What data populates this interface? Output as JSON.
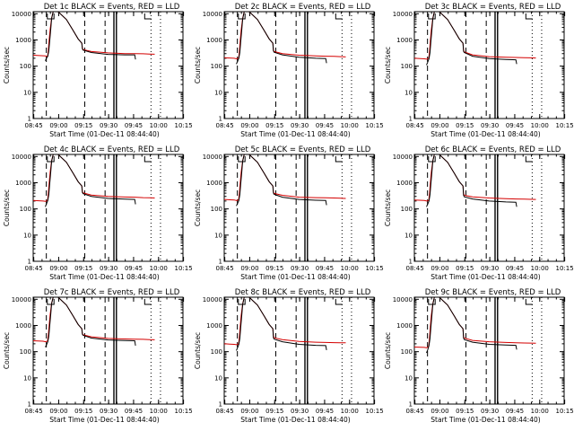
{
  "figure": {
    "xlabel": "Start Time (01-Dec-11 08:44:40)",
    "ylabel": "Counts/sec"
  },
  "chart_data": [
    {
      "type": "line",
      "title": "Det 1c BLACK = Events, RED = LLD",
      "x_ticks": [
        "08:45",
        "09:00",
        "09:15",
        "09:30",
        "09:45",
        "10:00",
        "10:15"
      ],
      "y_ticks": [
        "1",
        "10",
        "100",
        "1000",
        "10000"
      ],
      "yscale": "log",
      "xlim_min": [
        0,
        90
      ],
      "ylim": [
        1,
        12000
      ],
      "series": [
        {
          "color": "#d40000",
          "x": [
            0,
            7.4,
            8.6,
            9.1,
            9.6,
            10.2,
            11.1,
            12,
            15,
            20,
            24,
            27,
            29.2,
            29.6,
            30,
            35,
            45,
            55,
            61,
            66,
            70,
            73
          ],
          "y": [
            260,
            245,
            230,
            400,
            1000,
            2500,
            7000,
            12000,
            12000,
            6000,
            2300,
            1100,
            750,
            480,
            430,
            360,
            320,
            300,
            300,
            295,
            290,
            285
          ]
        },
        {
          "color": "#000000",
          "x": [
            7.3,
            8,
            8.8,
            9.4,
            9.9,
            10.5,
            11.1,
            12,
            15,
            20,
            24,
            27,
            29.2,
            29.6,
            30,
            35,
            45,
            55,
            61,
            61.5
          ],
          "y": [
            160,
            200,
            240,
            380,
            900,
            2400,
            6800,
            12000,
            12000,
            6000,
            2300,
            1100,
            750,
            450,
            410,
            330,
            280,
            270,
            270,
            180
          ]
        }
      ]
    },
    {
      "type": "line",
      "title": "Det 2c BLACK = Events, RED = LLD",
      "x_ticks": [
        "08:45",
        "09:00",
        "09:15",
        "09:30",
        "09:45",
        "10:00",
        "10:15"
      ],
      "y_ticks": [
        "1",
        "10",
        "100",
        "1000",
        "10000"
      ],
      "yscale": "log",
      "xlim_min": [
        0,
        90
      ],
      "ylim": [
        1,
        12000
      ],
      "series": [
        {
          "color": "#d40000",
          "x": [
            0,
            6,
            7.4,
            8.6,
            9.1,
            9.6,
            10.2,
            11.1,
            12,
            15,
            20,
            24,
            27,
            29.2,
            29.6,
            30,
            35,
            45,
            55,
            61,
            66,
            70,
            73
          ],
          "y": [
            210,
            200,
            190,
            200,
            350,
            900,
            2400,
            6800,
            12000,
            12000,
            6000,
            2300,
            1100,
            750,
            400,
            360,
            300,
            260,
            245,
            240,
            235,
            230,
            225
          ]
        },
        {
          "color": "#000000",
          "x": [
            7.3,
            8,
            8.8,
            9.4,
            9.9,
            10.5,
            11.1,
            12,
            15,
            20,
            24,
            27,
            29.2,
            29.6,
            30,
            35,
            45,
            55,
            61,
            61.5
          ],
          "y": [
            120,
            150,
            200,
            330,
            850,
            2300,
            6500,
            12000,
            12000,
            6000,
            2300,
            1100,
            750,
            380,
            340,
            270,
            220,
            200,
            195,
            130
          ]
        }
      ]
    },
    {
      "type": "line",
      "title": "Det 3c BLACK = Events, RED = LLD",
      "x_ticks": [
        "08:45",
        "09:00",
        "09:15",
        "09:30",
        "09:45",
        "10:00",
        "10:15"
      ],
      "y_ticks": [
        "1",
        "10",
        "100",
        "1000",
        "10000"
      ],
      "yscale": "log",
      "xlim_min": [
        0,
        90
      ],
      "ylim": [
        1,
        12000
      ],
      "series": [
        {
          "color": "#d40000",
          "x": [
            0,
            6,
            7.4,
            8.6,
            9.1,
            9.6,
            10.2,
            11.1,
            12,
            15,
            20,
            24,
            27,
            29.2,
            29.6,
            30,
            35,
            45,
            55,
            61,
            66,
            70,
            73
          ],
          "y": [
            200,
            190,
            185,
            200,
            350,
            900,
            2400,
            6800,
            12000,
            12000,
            6000,
            2300,
            1100,
            750,
            400,
            350,
            270,
            230,
            220,
            215,
            210,
            208,
            205
          ]
        },
        {
          "color": "#000000",
          "x": [
            7.3,
            8,
            8.8,
            9.4,
            9.9,
            10.5,
            11.1,
            12,
            15,
            20,
            24,
            27,
            29.2,
            29.6,
            30,
            35,
            45,
            55,
            61,
            61.5
          ],
          "y": [
            110,
            140,
            190,
            320,
            850,
            2300,
            6500,
            12000,
            12000,
            6000,
            2300,
            1100,
            750,
            370,
            330,
            240,
            195,
            180,
            175,
            120
          ]
        }
      ]
    },
    {
      "type": "line",
      "title": "Det 4c BLACK = Events, RED = LLD",
      "x_ticks": [
        "08:45",
        "09:00",
        "09:15",
        "09:30",
        "09:45",
        "10:00",
        "10:15"
      ],
      "y_ticks": [
        "1",
        "10",
        "100",
        "1000",
        "10000"
      ],
      "yscale": "log",
      "xlim_min": [
        0,
        90
      ],
      "ylim": [
        1,
        12000
      ],
      "series": [
        {
          "color": "#d40000",
          "x": [
            0,
            6,
            7.4,
            8.6,
            9.1,
            9.6,
            10.2,
            11.1,
            12,
            15,
            20,
            24,
            27,
            29.2,
            29.6,
            30,
            35,
            45,
            55,
            61,
            66,
            70,
            73
          ],
          "y": [
            210,
            200,
            195,
            210,
            380,
            950,
            2500,
            7000,
            12000,
            12000,
            6000,
            2300,
            1100,
            750,
            450,
            410,
            340,
            300,
            285,
            280,
            270,
            265,
            260
          ]
        },
        {
          "color": "#000000",
          "x": [
            7.3,
            8,
            8.8,
            9.4,
            9.9,
            10.5,
            11.1,
            12,
            15,
            20,
            24,
            27,
            29.2,
            29.6,
            30,
            35,
            45,
            55,
            61,
            61.5
          ],
          "y": [
            120,
            155,
            210,
            350,
            900,
            2400,
            6800,
            12000,
            12000,
            6000,
            2300,
            1100,
            750,
            420,
            380,
            300,
            250,
            235,
            230,
            150
          ]
        }
      ]
    },
    {
      "type": "line",
      "title": "Det 5c BLACK = Events, RED = LLD",
      "x_ticks": [
        "08:45",
        "09:00",
        "09:15",
        "09:30",
        "09:45",
        "10:00",
        "10:15"
      ],
      "y_ticks": [
        "1",
        "10",
        "100",
        "1000",
        "10000"
      ],
      "yscale": "log",
      "xlim_min": [
        0,
        90
      ],
      "ylim": [
        1,
        12000
      ],
      "series": [
        {
          "color": "#d40000",
          "x": [
            0,
            6,
            7.4,
            8.6,
            9.1,
            9.6,
            10.2,
            11.1,
            12,
            15,
            20,
            24,
            27,
            29.2,
            29.6,
            30,
            35,
            45,
            55,
            61,
            66,
            70,
            73
          ],
          "y": [
            230,
            220,
            210,
            220,
            380,
            950,
            2500,
            7000,
            12000,
            12000,
            6000,
            2300,
            1100,
            750,
            430,
            390,
            330,
            280,
            270,
            265,
            260,
            255,
            250
          ]
        },
        {
          "color": "#000000",
          "x": [
            7.3,
            8,
            8.8,
            9.4,
            9.9,
            10.5,
            11.1,
            12,
            15,
            20,
            24,
            27,
            29.2,
            29.6,
            30,
            35,
            45,
            55,
            61,
            61.5
          ],
          "y": [
            130,
            160,
            210,
            350,
            900,
            2400,
            6800,
            12000,
            12000,
            6000,
            2300,
            1100,
            750,
            400,
            360,
            280,
            230,
            215,
            210,
            140
          ]
        }
      ]
    },
    {
      "type": "line",
      "title": "Det 6c BLACK = Events, RED = LLD",
      "x_ticks": [
        "08:45",
        "09:00",
        "09:15",
        "09:30",
        "09:45",
        "10:00",
        "10:15"
      ],
      "y_ticks": [
        "1",
        "10",
        "100",
        "1000",
        "10000"
      ],
      "yscale": "log",
      "xlim_min": [
        0,
        90
      ],
      "ylim": [
        1,
        12000
      ],
      "series": [
        {
          "color": "#d40000",
          "x": [
            0,
            6,
            7.4,
            8.6,
            9.1,
            9.6,
            10.2,
            11.1,
            12,
            15,
            20,
            24,
            27,
            29.2,
            29.6,
            30,
            35,
            45,
            55,
            61,
            66,
            70,
            73
          ],
          "y": [
            220,
            210,
            200,
            210,
            370,
            950,
            2500,
            7000,
            12000,
            12000,
            6000,
            2300,
            1100,
            750,
            380,
            330,
            290,
            260,
            245,
            240,
            235,
            232,
            230
          ]
        },
        {
          "color": "#000000",
          "x": [
            7.3,
            8,
            8.8,
            9.4,
            9.9,
            10.5,
            11.1,
            12,
            15,
            20,
            24,
            27,
            29.2,
            29.6,
            30,
            35,
            45,
            55,
            61,
            61.5
          ],
          "y": [
            120,
            150,
            200,
            340,
            880,
            2400,
            6800,
            12000,
            12000,
            6000,
            2300,
            1100,
            750,
            330,
            290,
            240,
            200,
            185,
            180,
            120
          ]
        }
      ]
    },
    {
      "type": "line",
      "title": "Det 7c BLACK = Events, RED = LLD",
      "x_ticks": [
        "08:45",
        "09:00",
        "09:15",
        "09:30",
        "09:45",
        "10:00",
        "10:15"
      ],
      "y_ticks": [
        "1",
        "10",
        "100",
        "1000",
        "10000"
      ],
      "yscale": "log",
      "xlim_min": [
        0,
        90
      ],
      "ylim": [
        1,
        12000
      ],
      "series": [
        {
          "color": "#d40000",
          "x": [
            0,
            6,
            7.4,
            8.6,
            9.1,
            9.6,
            10.2,
            11.1,
            12,
            15,
            20,
            24,
            27,
            29.2,
            29.6,
            30,
            35,
            45,
            55,
            61,
            66,
            70,
            73
          ],
          "y": [
            260,
            250,
            240,
            250,
            420,
            1000,
            2600,
            7200,
            12000,
            12000,
            6000,
            2300,
            1100,
            750,
            480,
            440,
            370,
            320,
            305,
            300,
            295,
            290,
            285
          ]
        },
        {
          "color": "#000000",
          "x": [
            7.3,
            8,
            8.8,
            9.4,
            9.9,
            10.5,
            11.1,
            12,
            15,
            20,
            24,
            27,
            29.2,
            29.6,
            30,
            35,
            45,
            55,
            61,
            61.5
          ],
          "y": [
            150,
            180,
            240,
            380,
            950,
            2500,
            7000,
            12000,
            12000,
            6000,
            2300,
            1100,
            750,
            460,
            420,
            330,
            280,
            265,
            260,
            170
          ]
        }
      ]
    },
    {
      "type": "line",
      "title": "Det 8c BLACK = Events, RED = LLD",
      "x_ticks": [
        "08:45",
        "09:00",
        "09:15",
        "09:30",
        "09:45",
        "10:00",
        "10:15"
      ],
      "y_ticks": [
        "1",
        "10",
        "100",
        "1000",
        "10000"
      ],
      "yscale": "log",
      "xlim_min": [
        0,
        90
      ],
      "ylim": [
        1,
        12000
      ],
      "series": [
        {
          "color": "#d40000",
          "x": [
            0,
            6,
            7.4,
            8.6,
            9.1,
            9.6,
            10.2,
            11.1,
            12,
            15,
            20,
            24,
            27,
            29.2,
            29.6,
            30,
            35,
            45,
            55,
            61,
            66,
            70,
            73
          ],
          "y": [
            200,
            190,
            185,
            195,
            350,
            900,
            2400,
            6800,
            12000,
            12000,
            6000,
            2300,
            1100,
            750,
            400,
            340,
            290,
            245,
            230,
            225,
            222,
            220,
            218
          ]
        },
        {
          "color": "#000000",
          "x": [
            7.3,
            8,
            8.8,
            9.4,
            9.9,
            10.5,
            11.1,
            12,
            15,
            20,
            24,
            27,
            29.2,
            29.6,
            30,
            35,
            45,
            55,
            61,
            61.5
          ],
          "y": [
            110,
            140,
            190,
            320,
            850,
            2300,
            6500,
            12000,
            12000,
            6000,
            2300,
            1100,
            750,
            340,
            300,
            240,
            190,
            175,
            170,
            115
          ]
        }
      ]
    },
    {
      "type": "line",
      "title": "Det 9c BLACK = Events, RED = LLD",
      "x_ticks": [
        "08:45",
        "09:00",
        "09:15",
        "09:30",
        "09:45",
        "10:00",
        "10:15"
      ],
      "y_ticks": [
        "1",
        "10",
        "100",
        "1000",
        "10000"
      ],
      "yscale": "log",
      "xlim_min": [
        0,
        90
      ],
      "ylim": [
        1,
        12000
      ],
      "series": [
        {
          "color": "#d40000",
          "x": [
            0,
            6,
            7.4,
            8.6,
            9.1,
            9.6,
            10.2,
            11.1,
            12,
            15,
            20,
            24,
            27,
            29.2,
            29.6,
            30,
            35,
            45,
            55,
            61,
            66,
            70,
            73
          ],
          "y": [
            150,
            145,
            140,
            160,
            330,
            880,
            2400,
            6800,
            12000,
            12000,
            6000,
            2300,
            1100,
            750,
            360,
            330,
            270,
            240,
            225,
            220,
            215,
            212,
            210
          ]
        },
        {
          "color": "#000000",
          "x": [
            7.3,
            8,
            8.8,
            9.4,
            9.9,
            10.5,
            11.1,
            12,
            15,
            20,
            24,
            27,
            29.2,
            29.6,
            30,
            35,
            45,
            55,
            61,
            61.5
          ],
          "y": [
            90,
            115,
            170,
            310,
            840,
            2300,
            6500,
            12000,
            12000,
            6000,
            2300,
            1100,
            750,
            330,
            290,
            230,
            190,
            180,
            175,
            120
          ]
        }
      ]
    }
  ]
}
